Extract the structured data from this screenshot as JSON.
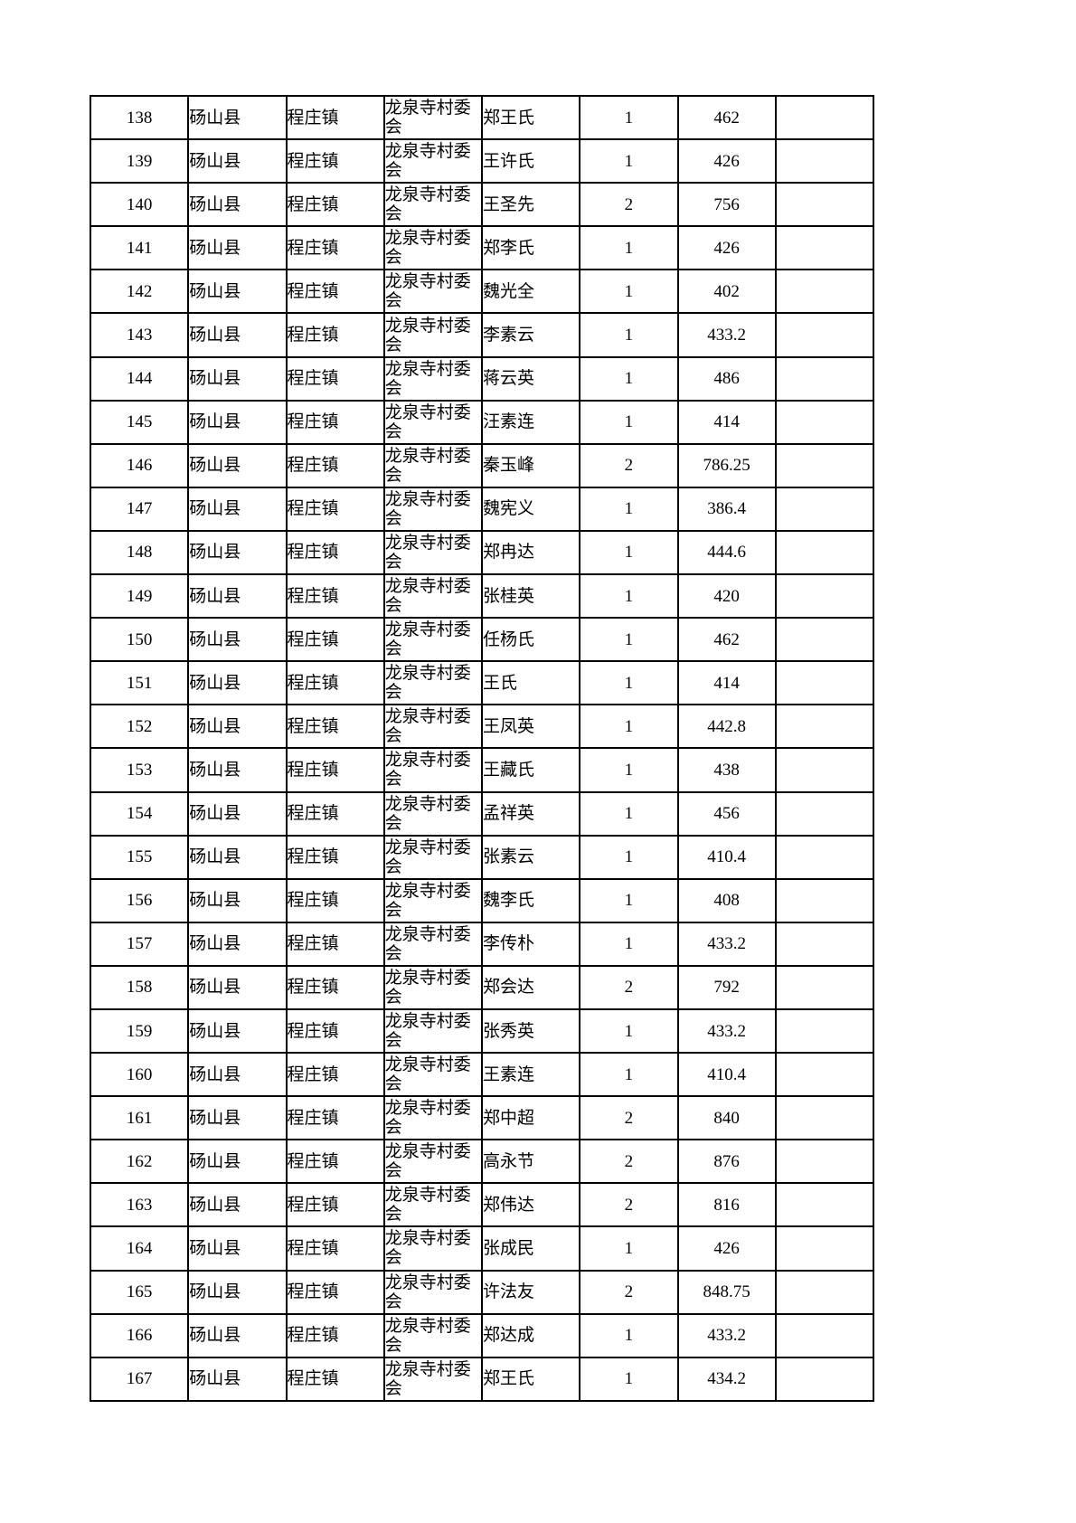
{
  "table": {
    "county": "砀山县",
    "town": "程庄镇",
    "village": "龙泉寺村委会",
    "columns": [
      "row-number",
      "county",
      "town",
      "village-committee",
      "person-name",
      "count",
      "amount",
      "blank"
    ],
    "rows": [
      {
        "no": "138",
        "name": "郑王氏",
        "count": "1",
        "amount": "462"
      },
      {
        "no": "139",
        "name": "王许氏",
        "count": "1",
        "amount": "426"
      },
      {
        "no": "140",
        "name": "王圣先",
        "count": "2",
        "amount": "756"
      },
      {
        "no": "141",
        "name": "郑李氏",
        "count": "1",
        "amount": "426"
      },
      {
        "no": "142",
        "name": "魏光全",
        "count": "1",
        "amount": "402"
      },
      {
        "no": "143",
        "name": "李素云",
        "count": "1",
        "amount": "433.2"
      },
      {
        "no": "144",
        "name": "蒋云英",
        "count": "1",
        "amount": "486"
      },
      {
        "no": "145",
        "name": "汪素连",
        "count": "1",
        "amount": "414"
      },
      {
        "no": "146",
        "name": "秦玉峰",
        "count": "2",
        "amount": "786.25"
      },
      {
        "no": "147",
        "name": "魏宪义",
        "count": "1",
        "amount": "386.4"
      },
      {
        "no": "148",
        "name": "郑冉达",
        "count": "1",
        "amount": "444.6"
      },
      {
        "no": "149",
        "name": "张桂英",
        "count": "1",
        "amount": "420"
      },
      {
        "no": "150",
        "name": "任杨氏",
        "count": "1",
        "amount": "462"
      },
      {
        "no": "151",
        "name": "王氏",
        "count": "1",
        "amount": "414"
      },
      {
        "no": "152",
        "name": "王凤英",
        "count": "1",
        "amount": "442.8"
      },
      {
        "no": "153",
        "name": "王藏氏",
        "count": "1",
        "amount": "438"
      },
      {
        "no": "154",
        "name": "孟祥英",
        "count": "1",
        "amount": "456"
      },
      {
        "no": "155",
        "name": "张素云",
        "count": "1",
        "amount": "410.4"
      },
      {
        "no": "156",
        "name": "魏李氏",
        "count": "1",
        "amount": "408"
      },
      {
        "no": "157",
        "name": "李传朴",
        "count": "1",
        "amount": "433.2"
      },
      {
        "no": "158",
        "name": "郑会达",
        "count": "2",
        "amount": "792"
      },
      {
        "no": "159",
        "name": "张秀英",
        "count": "1",
        "amount": "433.2"
      },
      {
        "no": "160",
        "name": "王素连",
        "count": "1",
        "amount": "410.4"
      },
      {
        "no": "161",
        "name": "郑中超",
        "count": "2",
        "amount": "840"
      },
      {
        "no": "162",
        "name": "高永节",
        "count": "2",
        "amount": "876"
      },
      {
        "no": "163",
        "name": "郑伟达",
        "count": "2",
        "amount": "816"
      },
      {
        "no": "164",
        "name": "张成民",
        "count": "1",
        "amount": "426"
      },
      {
        "no": "165",
        "name": "许法友",
        "count": "2",
        "amount": "848.75"
      },
      {
        "no": "166",
        "name": "郑达成",
        "count": "1",
        "amount": "433.2"
      },
      {
        "no": "167",
        "name": "郑王氏",
        "count": "1",
        "amount": "434.2"
      }
    ]
  }
}
